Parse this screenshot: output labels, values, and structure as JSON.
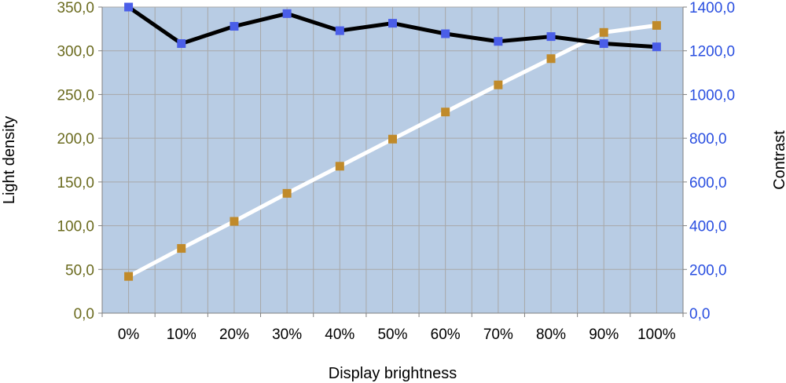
{
  "chart_data": {
    "type": "line",
    "xlabel": "Display brightness",
    "ylabel_left": "Light density",
    "ylabel_right": "Contrast",
    "categories": [
      "0%",
      "10%",
      "20%",
      "30%",
      "40%",
      "50%",
      "60%",
      "70%",
      "80%",
      "90%",
      "100%"
    ],
    "ylim_left": [
      0,
      350
    ],
    "ylim_right": [
      0,
      1400
    ],
    "yticks_left": [
      "0,0",
      "50,0",
      "100,0",
      "150,0",
      "200,0",
      "250,0",
      "300,0",
      "350,0"
    ],
    "yticks_right": [
      "0,0",
      "200,0",
      "400,0",
      "600,0",
      "800,0",
      "1000,0",
      "1200,0",
      "1400,0"
    ],
    "grid": true,
    "series": [
      {
        "axis": "left",
        "line_color": "#ffffff",
        "marker_color": "#c08a2a",
        "values": [
          42,
          74,
          105,
          137,
          168,
          199,
          230,
          261,
          291,
          321,
          329
        ]
      },
      {
        "axis": "right",
        "line_color": "#000000",
        "marker_color": "#4a5ee8",
        "values": [
          1400,
          1233,
          1312,
          1370,
          1292,
          1326,
          1278,
          1243,
          1265,
          1233,
          1218
        ]
      }
    ],
    "colors": {
      "plot_background": "#b8cce4",
      "gridline": "#a8a8a8",
      "left_tick_text": "#6b6b1f",
      "right_tick_text": "#2a4fe0"
    }
  }
}
